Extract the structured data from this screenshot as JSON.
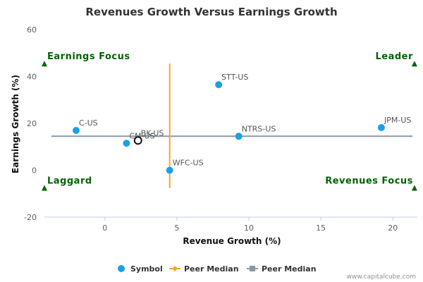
{
  "chart_data": {
    "type": "scatter",
    "title": "Revenues Growth Versus Earnings Growth",
    "xlabel": "Revenue Growth (%)",
    "ylabel": "Earnings Growth (%)",
    "xlim": [
      -4.2,
      21.7
    ],
    "ylim": [
      -20,
      60
    ],
    "xticks": [
      0,
      5,
      10,
      15,
      20
    ],
    "yticks": [
      -20,
      0,
      20,
      40,
      60
    ],
    "grid": false,
    "points": [
      {
        "label": "C-US",
        "x": -2.0,
        "y": 17
      },
      {
        "label": "CM-US",
        "x": 1.5,
        "y": 11.5
      },
      {
        "label": "BK-US",
        "x": 2.3,
        "y": 12.7,
        "highlight": true
      },
      {
        "label": "WFC-US",
        "x": 4.5,
        "y": 0
      },
      {
        "label": "STT-US",
        "x": 7.9,
        "y": 36.5
      },
      {
        "label": "NTRS-US",
        "x": 9.3,
        "y": 14.5
      },
      {
        "label": "JPM-US",
        "x": 19.2,
        "y": 18.2
      }
    ],
    "peer_median_x": 4.5,
    "peer_median_y": 14.5,
    "peer_median_x_range": [
      -7.5,
      45.5
    ],
    "quadrants": [
      {
        "label": "Earnings Focus",
        "corner": "top-left",
        "x": -4.2,
        "y": 45.5
      },
      {
        "label": "Leader",
        "corner": "top-right",
        "x": 21.5,
        "y": 45.5
      },
      {
        "label": "Laggard",
        "corner": "bottom-left",
        "x": -4.2,
        "y": -7.5
      },
      {
        "label": "Revenues Focus",
        "corner": "bottom-right",
        "x": 21.5,
        "y": -7.5
      }
    ],
    "legend": {
      "position": "bottom-center",
      "items": [
        {
          "label": "Symbol",
          "marker": "circle",
          "color": "#1aa0e8"
        },
        {
          "label": "Peer Median",
          "marker": "line-diamond",
          "color": "#f6a623"
        },
        {
          "label": "Peer Median",
          "marker": "line-square",
          "color": "#8c97a8"
        }
      ]
    },
    "colors": {
      "symbol": "#1aa0e8",
      "peer_median_vertical": "#f6a623",
      "peer_median_horizontal": "#8c97a8",
      "quadrant": "#006400"
    }
  },
  "credit": "www.capitalcube.com"
}
